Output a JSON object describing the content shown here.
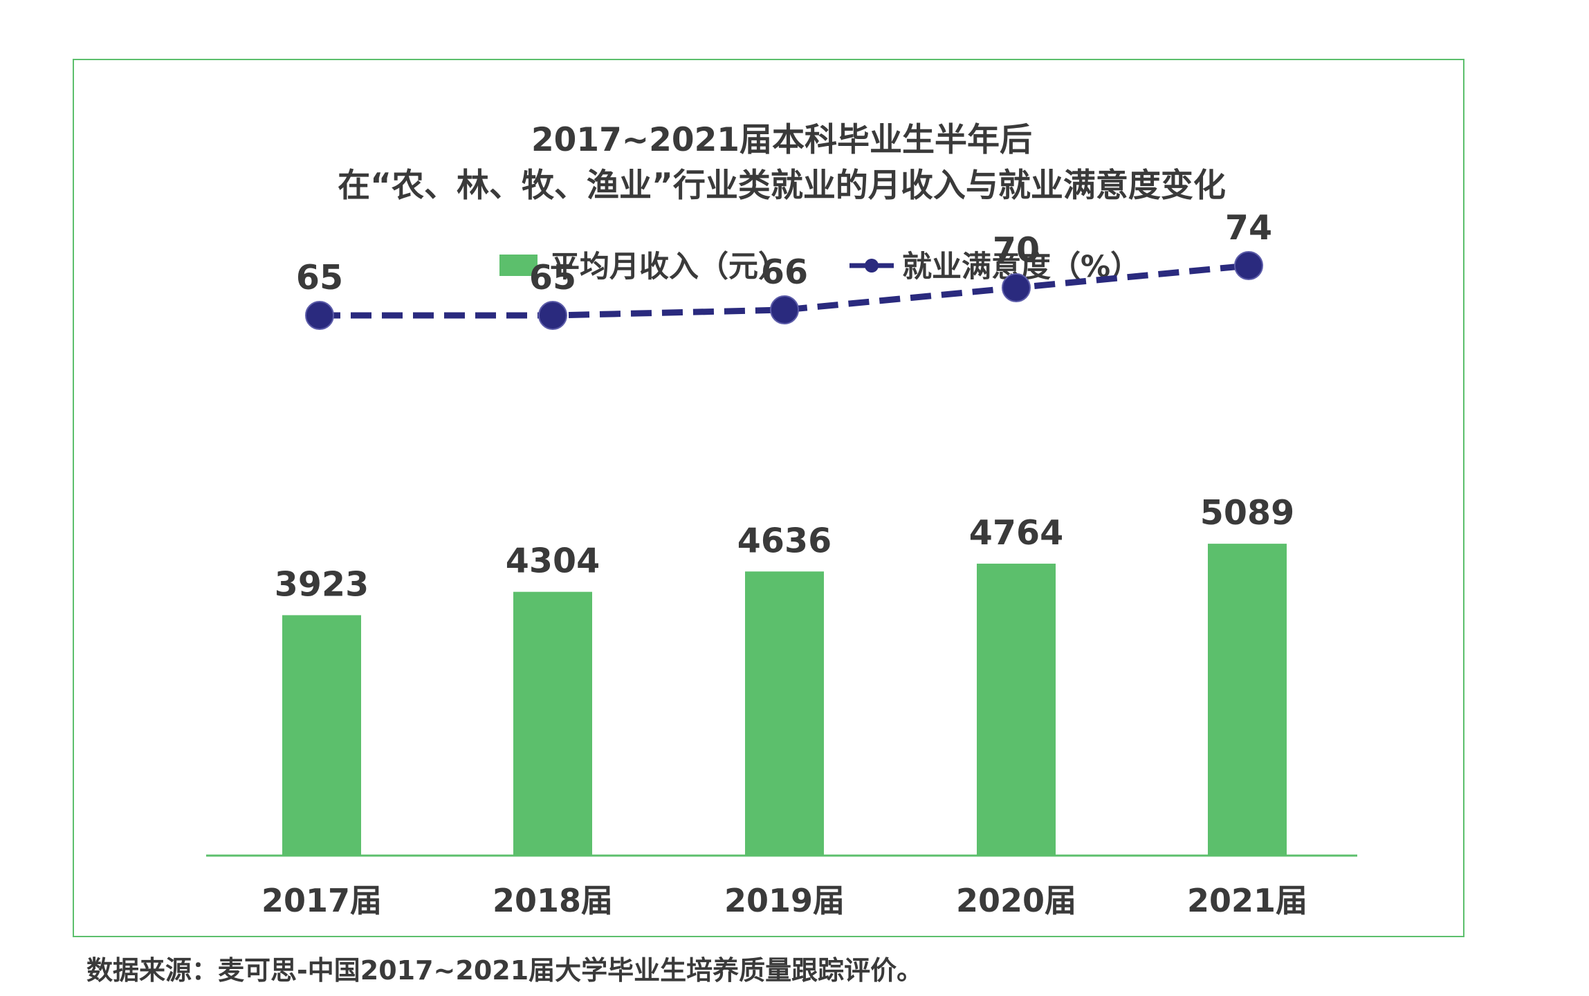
{
  "chart_data": {
    "type": "bar",
    "title_line1": "2017~2021届本科毕业生半年后",
    "title_line2": "在“农、林、牧、渔业”行业类就业的月收入与就业满意度变化",
    "categories": [
      "2017届",
      "2018届",
      "2019届",
      "2020届",
      "2021届"
    ],
    "series": [
      {
        "name": "平均月收入（元）",
        "type": "bar",
        "color": "#5cbf6c",
        "values": [
          3923,
          4304,
          4636,
          4764,
          5089
        ]
      },
      {
        "name": "就业满意度（%）",
        "type": "line",
        "style": "dashed",
        "color": "#2a2a7e",
        "values": [
          65,
          65,
          66,
          70,
          74
        ]
      }
    ],
    "legend_position": "top-center",
    "grid": false
  },
  "source_note": "数据来源：麦可思-中国2017~2021届大学毕业生培养质量跟踪评价。",
  "colors": {
    "frame": "#5cbf6c",
    "bar": "#5cbf6c",
    "line": "#2a2a7e",
    "text": "#3a3a3a"
  }
}
